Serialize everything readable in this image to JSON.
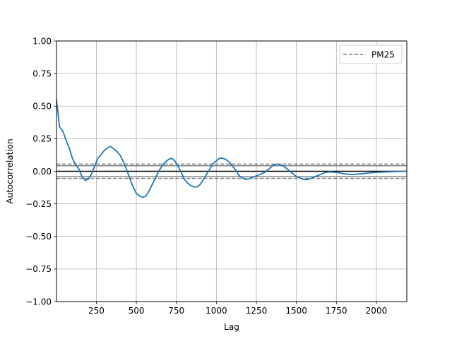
{
  "chart_data": {
    "type": "line",
    "title": "",
    "xlabel": "Lag",
    "ylabel": "Autocorrelation",
    "xlim": [
      1,
      2190
    ],
    "ylim": [
      -1.0,
      1.0
    ],
    "x_ticks": [
      250,
      500,
      750,
      1000,
      1250,
      1500,
      1750,
      2000
    ],
    "x_tick_labels": [
      "250",
      "500",
      "750",
      "1000",
      "1250",
      "1500",
      "1750",
      "2000"
    ],
    "y_ticks": [
      -1.0,
      -0.75,
      -0.5,
      -0.25,
      0.0,
      0.25,
      0.5,
      0.75,
      1.0
    ],
    "y_tick_labels": [
      "−1.00",
      "−0.75",
      "−0.50",
      "−0.25",
      "0.00",
      "0.25",
      "0.50",
      "0.75",
      "1.00"
    ],
    "grid": true,
    "legend_position": "upper-right",
    "series_color": "#1f77b4",
    "reference_lines": {
      "zero": 0.0,
      "conf_95": [
        0.042,
        -0.042
      ],
      "conf_99": [
        0.055,
        -0.055
      ],
      "color": "#808080"
    },
    "legend": [
      {
        "label": "PM25",
        "style": "dashed",
        "color": "#808080"
      }
    ],
    "series": [
      {
        "x": [
          1,
          20,
          40,
          60,
          80,
          100,
          120,
          140,
          160,
          180,
          200,
          220,
          240,
          260,
          280,
          300,
          320,
          340,
          360,
          380,
          400,
          420,
          440,
          460,
          480,
          500,
          520,
          540,
          560,
          580,
          600,
          620,
          640,
          660,
          680,
          700,
          720,
          740,
          760,
          780,
          800,
          820,
          840,
          860,
          880,
          900,
          920,
          940,
          960,
          980,
          1000,
          1020,
          1040,
          1060,
          1080,
          1100,
          1120,
          1140,
          1160,
          1180,
          1200,
          1220,
          1240,
          1260,
          1280,
          1300,
          1320,
          1340,
          1360,
          1380,
          1400,
          1420,
          1440,
          1460,
          1480,
          1500,
          1520,
          1540,
          1560,
          1580,
          1600,
          1620,
          1640,
          1660,
          1680,
          1700,
          1720,
          1740,
          1760,
          1780,
          1800,
          1820,
          1840,
          1860,
          1880,
          1900,
          1920,
          1940,
          1960,
          1980,
          2000,
          2050,
          2100,
          2150,
          2190
        ],
        "values": [
          0.55,
          0.34,
          0.31,
          0.24,
          0.18,
          0.1,
          0.05,
          0.02,
          -0.04,
          -0.07,
          -0.06,
          -0.02,
          0.04,
          0.1,
          0.13,
          0.16,
          0.18,
          0.19,
          0.17,
          0.15,
          0.12,
          0.07,
          0.01,
          -0.06,
          -0.12,
          -0.17,
          -0.19,
          -0.2,
          -0.19,
          -0.15,
          -0.1,
          -0.05,
          0.0,
          0.04,
          0.07,
          0.09,
          0.1,
          0.08,
          0.04,
          -0.01,
          -0.06,
          -0.09,
          -0.11,
          -0.12,
          -0.12,
          -0.1,
          -0.06,
          -0.02,
          0.02,
          0.06,
          0.08,
          0.1,
          0.1,
          0.09,
          0.07,
          0.04,
          0.01,
          -0.03,
          -0.05,
          -0.06,
          -0.06,
          -0.05,
          -0.04,
          -0.03,
          -0.02,
          -0.01,
          0.01,
          0.03,
          0.05,
          0.055,
          0.05,
          0.04,
          0.02,
          0.0,
          -0.02,
          -0.04,
          -0.05,
          -0.06,
          -0.065,
          -0.06,
          -0.05,
          -0.04,
          -0.03,
          -0.02,
          -0.01,
          -0.005,
          -0.005,
          -0.008,
          -0.01,
          -0.015,
          -0.02,
          -0.022,
          -0.025,
          -0.025,
          -0.022,
          -0.02,
          -0.018,
          -0.015,
          -0.012,
          -0.01,
          -0.008,
          -0.005,
          -0.003,
          -0.001,
          0.0
        ]
      }
    ]
  }
}
